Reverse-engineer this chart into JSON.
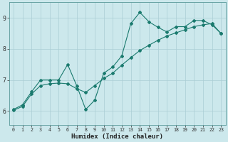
{
  "title": "",
  "xlabel": "Humidex (Indice chaleur)",
  "ylabel": "",
  "background_color": "#cce8ec",
  "line_color": "#1a7a6e",
  "grid_color": "#aacdd4",
  "yticks": [
    6,
    7,
    8,
    9
  ],
  "xticks": [
    0,
    1,
    2,
    3,
    4,
    5,
    6,
    7,
    8,
    9,
    10,
    11,
    12,
    13,
    14,
    15,
    16,
    17,
    18,
    19,
    20,
    21,
    22,
    23
  ],
  "xlim": [
    -0.5,
    23.5
  ],
  "ylim": [
    5.55,
    9.5
  ],
  "curve1_x": [
    0,
    1,
    2,
    3,
    4,
    5,
    6,
    7,
    8,
    9,
    10,
    11,
    12,
    13,
    14,
    15,
    16,
    17,
    18,
    19,
    20,
    21,
    22,
    23
  ],
  "curve1_y": [
    6.05,
    6.2,
    6.62,
    7.0,
    7.0,
    7.0,
    7.5,
    6.82,
    6.05,
    6.35,
    7.22,
    7.42,
    7.78,
    8.82,
    9.18,
    8.88,
    8.7,
    8.55,
    8.72,
    8.72,
    8.92,
    8.92,
    8.78,
    8.5
  ],
  "curve2_x": [
    0,
    1,
    2,
    3,
    4,
    5,
    6,
    7,
    8,
    9,
    10,
    11,
    12,
    13,
    14,
    15,
    16,
    17,
    18,
    19,
    20,
    21,
    22,
    23
  ],
  "curve2_y": [
    6.02,
    6.15,
    6.55,
    6.82,
    6.88,
    6.9,
    6.88,
    6.72,
    6.6,
    6.82,
    7.05,
    7.22,
    7.48,
    7.72,
    7.95,
    8.12,
    8.28,
    8.42,
    8.52,
    8.62,
    8.72,
    8.78,
    8.82,
    8.5
  ]
}
